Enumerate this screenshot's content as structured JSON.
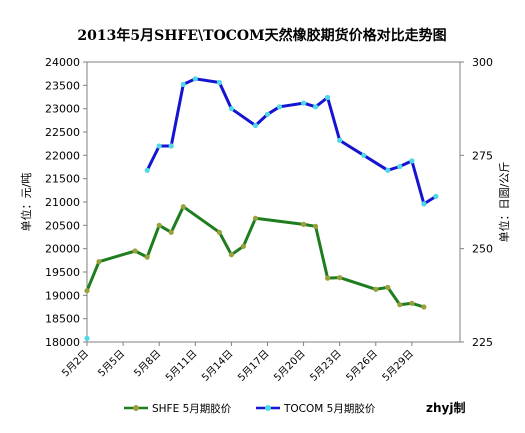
{
  "chart_data": {
    "type": "line",
    "title": "2013年5月SHFE\\TOCOM天然橡胶期货价格对比走势图",
    "ylabel_left": "单位：元/吨",
    "ylabel_right": "单位：日圆/公斤",
    "credit": "zhyj制",
    "ylim_left": [
      18000,
      24000
    ],
    "left_ticks": [
      18000,
      18500,
      19000,
      19500,
      20000,
      20500,
      21000,
      21500,
      22000,
      22500,
      23000,
      23500,
      24000
    ],
    "ylim_right": [
      225,
      300
    ],
    "right_ticks": [
      225,
      250,
      275,
      300
    ],
    "xlim": [
      2,
      33
    ],
    "x_ticks": [
      {
        "x": 2,
        "label": "5月2日"
      },
      {
        "x": 5,
        "label": "5月5日"
      },
      {
        "x": 8,
        "label": "5月8日"
      },
      {
        "x": 11,
        "label": "5月11日"
      },
      {
        "x": 14,
        "label": "5月14日"
      },
      {
        "x": 17,
        "label": "5月17日"
      },
      {
        "x": 20,
        "label": "5月20日"
      },
      {
        "x": 23,
        "label": "5月23日"
      },
      {
        "x": 26,
        "label": "5月26日"
      },
      {
        "x": 29,
        "label": "5月29日"
      }
    ],
    "grid": false,
    "legend_position": "bottom",
    "series": [
      {
        "name": "SHFE 5月期胶价",
        "axis": "left",
        "color": "#1e7d1e",
        "marker_color": "#9aa03c",
        "segments": [
          [
            [
              2,
              19100
            ],
            [
              3,
              19720
            ],
            [
              6,
              19950
            ],
            [
              7,
              19820
            ],
            [
              8,
              20500
            ],
            [
              9,
              20350
            ],
            [
              10,
              20900
            ],
            [
              13,
              20350
            ],
            [
              14,
              19870
            ],
            [
              15,
              20050
            ],
            [
              16,
              20650
            ],
            [
              20,
              20520
            ],
            [
              21,
              20480
            ],
            [
              22,
              19370
            ],
            [
              23,
              19380
            ],
            [
              26,
              19130
            ],
            [
              27,
              19170
            ],
            [
              28,
              18800
            ],
            [
              29,
              18830
            ],
            [
              30,
              18750
            ]
          ]
        ]
      },
      {
        "name": "TOCOM 5月期胶价",
        "axis": "right",
        "color": "#1414d2",
        "marker_color": "#4fd8e8",
        "segments": [
          [
            [
              2,
              226
            ]
          ],
          [
            [
              7,
              271
            ],
            [
              8,
              277.5
            ],
            [
              9,
              277.5
            ],
            [
              10,
              294
            ],
            [
              11,
              295.5
            ],
            [
              13,
              294.5
            ],
            [
              14,
              287.5
            ],
            [
              16,
              283
            ],
            [
              17,
              286
            ],
            [
              18,
              288
            ],
            [
              20,
              289
            ],
            [
              21,
              288
            ],
            [
              22,
              290.5
            ],
            [
              23,
              279
            ],
            [
              25,
              275
            ],
            [
              27,
              271
            ],
            [
              28,
              272
            ],
            [
              29,
              273.5
            ],
            [
              30,
              262
            ],
            [
              31,
              264
            ]
          ]
        ]
      }
    ]
  }
}
